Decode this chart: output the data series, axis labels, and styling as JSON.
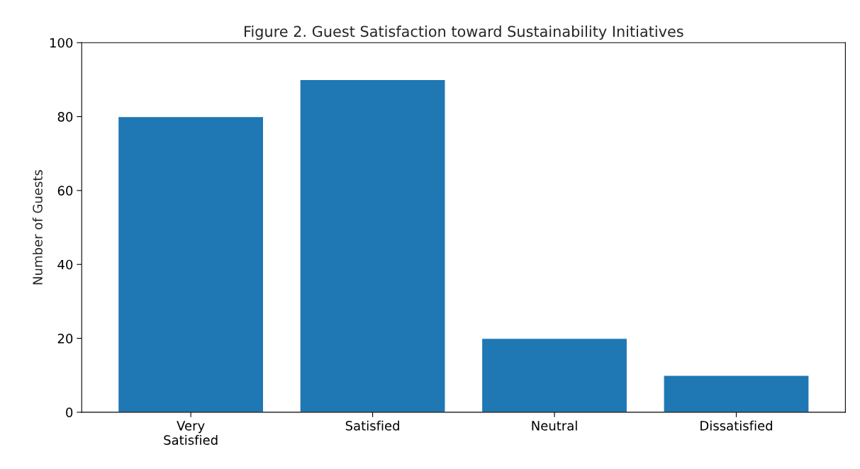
{
  "chart_data": {
    "type": "bar",
    "title": "Figure 2. Guest Satisfaction toward Sustainability Initiatives",
    "ylabel": "Number of Guests",
    "categories": [
      "Very\nSatisfied",
      "Satisfied",
      "Neutral",
      "Dissatisfied"
    ],
    "values": [
      80,
      90,
      20,
      10
    ],
    "color": "#1f77b4",
    "ylim": [
      0,
      100
    ],
    "yticks": [
      0,
      20,
      40,
      60,
      80,
      100
    ],
    "grid": false,
    "legend": false
  }
}
